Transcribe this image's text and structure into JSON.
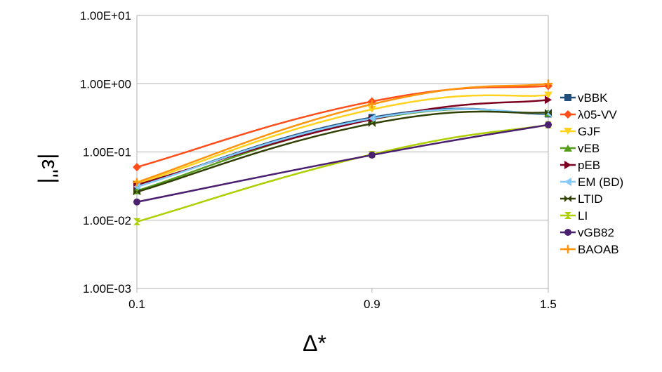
{
  "chart_data": {
    "type": "line",
    "xlabel": "Δ*",
    "ylabel": "|ε''|",
    "yscale": "log",
    "ylim": [
      0.001,
      10
    ],
    "x_categories": [
      "0.1",
      "0.9",
      "1.5"
    ],
    "y_tick_labels": [
      "1.00E+01",
      "1.00E+00",
      "1.00E-01",
      "1.00E-02",
      "1.00E-03"
    ],
    "grid": "horizontal",
    "legend_position": "right",
    "series": [
      {
        "name": "vBBK",
        "color": "#1f4e79",
        "marker": "square",
        "values": [
          0.031,
          0.32,
          0.36
        ]
      },
      {
        "name": "λ05-VV",
        "color": "#ff4e1a",
        "marker": "diamond",
        "values": [
          0.06,
          0.55,
          0.93
        ]
      },
      {
        "name": "GJF",
        "color": "#ffd320",
        "marker": "tri-down",
        "values": [
          0.034,
          0.42,
          0.68
        ]
      },
      {
        "name": "vEB",
        "color": "#579d1c",
        "marker": "tri-up",
        "values": [
          0.027,
          0.3,
          0.37
        ]
      },
      {
        "name": "pEB",
        "color": "#7e0021",
        "marker": "tri-right",
        "values": [
          0.033,
          0.3,
          0.58
        ]
      },
      {
        "name": "EM (BD)",
        "color": "#83caff",
        "marker": "tri-left",
        "values": [
          0.031,
          0.31,
          0.37
        ]
      },
      {
        "name": "LTID",
        "color": "#314004",
        "marker": "bowtie",
        "values": [
          0.026,
          0.26,
          0.38
        ]
      },
      {
        "name": "LI",
        "color": "#aecf00",
        "marker": "hourglass",
        "values": [
          0.0095,
          0.092,
          0.25
        ]
      },
      {
        "name": "vGB82",
        "color": "#4b1f6f",
        "marker": "circle",
        "values": [
          0.0185,
          0.09,
          0.25
        ]
      },
      {
        "name": "BAOAB",
        "color": "#ff950e",
        "marker": "plus",
        "values": [
          0.036,
          0.5,
          1.0
        ]
      }
    ]
  }
}
